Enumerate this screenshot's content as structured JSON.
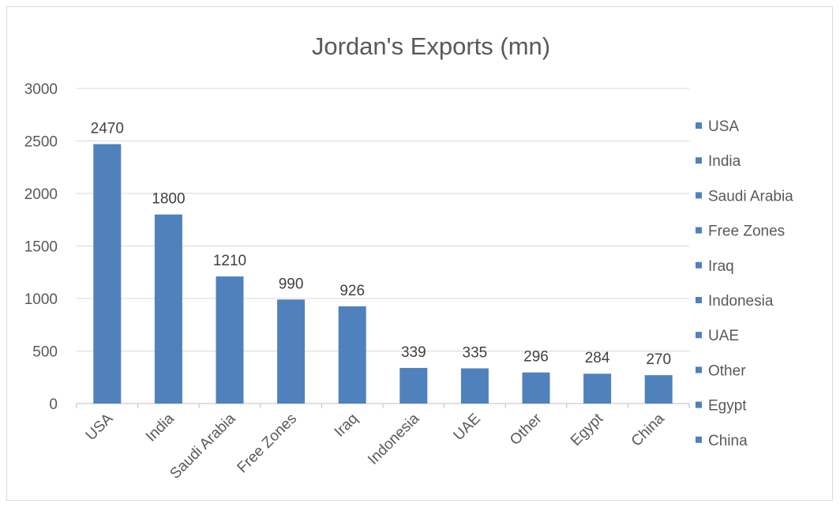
{
  "chart_data": {
    "type": "bar",
    "title": "Jordan's Exports (mn)",
    "xlabel": "",
    "ylabel": "",
    "categories": [
      "USA",
      "India",
      "Saudi Arabia",
      "Free Zones",
      "Iraq",
      "Indonesia",
      "UAE",
      "Other",
      "Egypt",
      "China"
    ],
    "values": [
      2470,
      1800,
      1210,
      990,
      926,
      339,
      335,
      296,
      284,
      270
    ],
    "data_labels": [
      "2470",
      "1800",
      "1210",
      "990",
      "926",
      "339",
      "335",
      "296",
      "284",
      "270"
    ],
    "ylim": [
      0,
      3000
    ],
    "yticks": [
      0,
      500,
      1000,
      1500,
      2000,
      2500,
      3000
    ],
    "ytick_labels": [
      "0",
      "500",
      "1000",
      "1500",
      "2000",
      "2500",
      "3000"
    ],
    "grid": true,
    "legend": {
      "placement": "right",
      "entries": [
        "USA",
        "India",
        "Saudi Arabia",
        "Free Zones",
        "Iraq",
        "Indonesia",
        "UAE",
        "Other",
        "Egypt",
        "China"
      ]
    },
    "colors": {
      "bar": "#4f81bd",
      "grid": "#d9d9d9",
      "axis": "#bfbfbf",
      "text": "#595959"
    }
  }
}
